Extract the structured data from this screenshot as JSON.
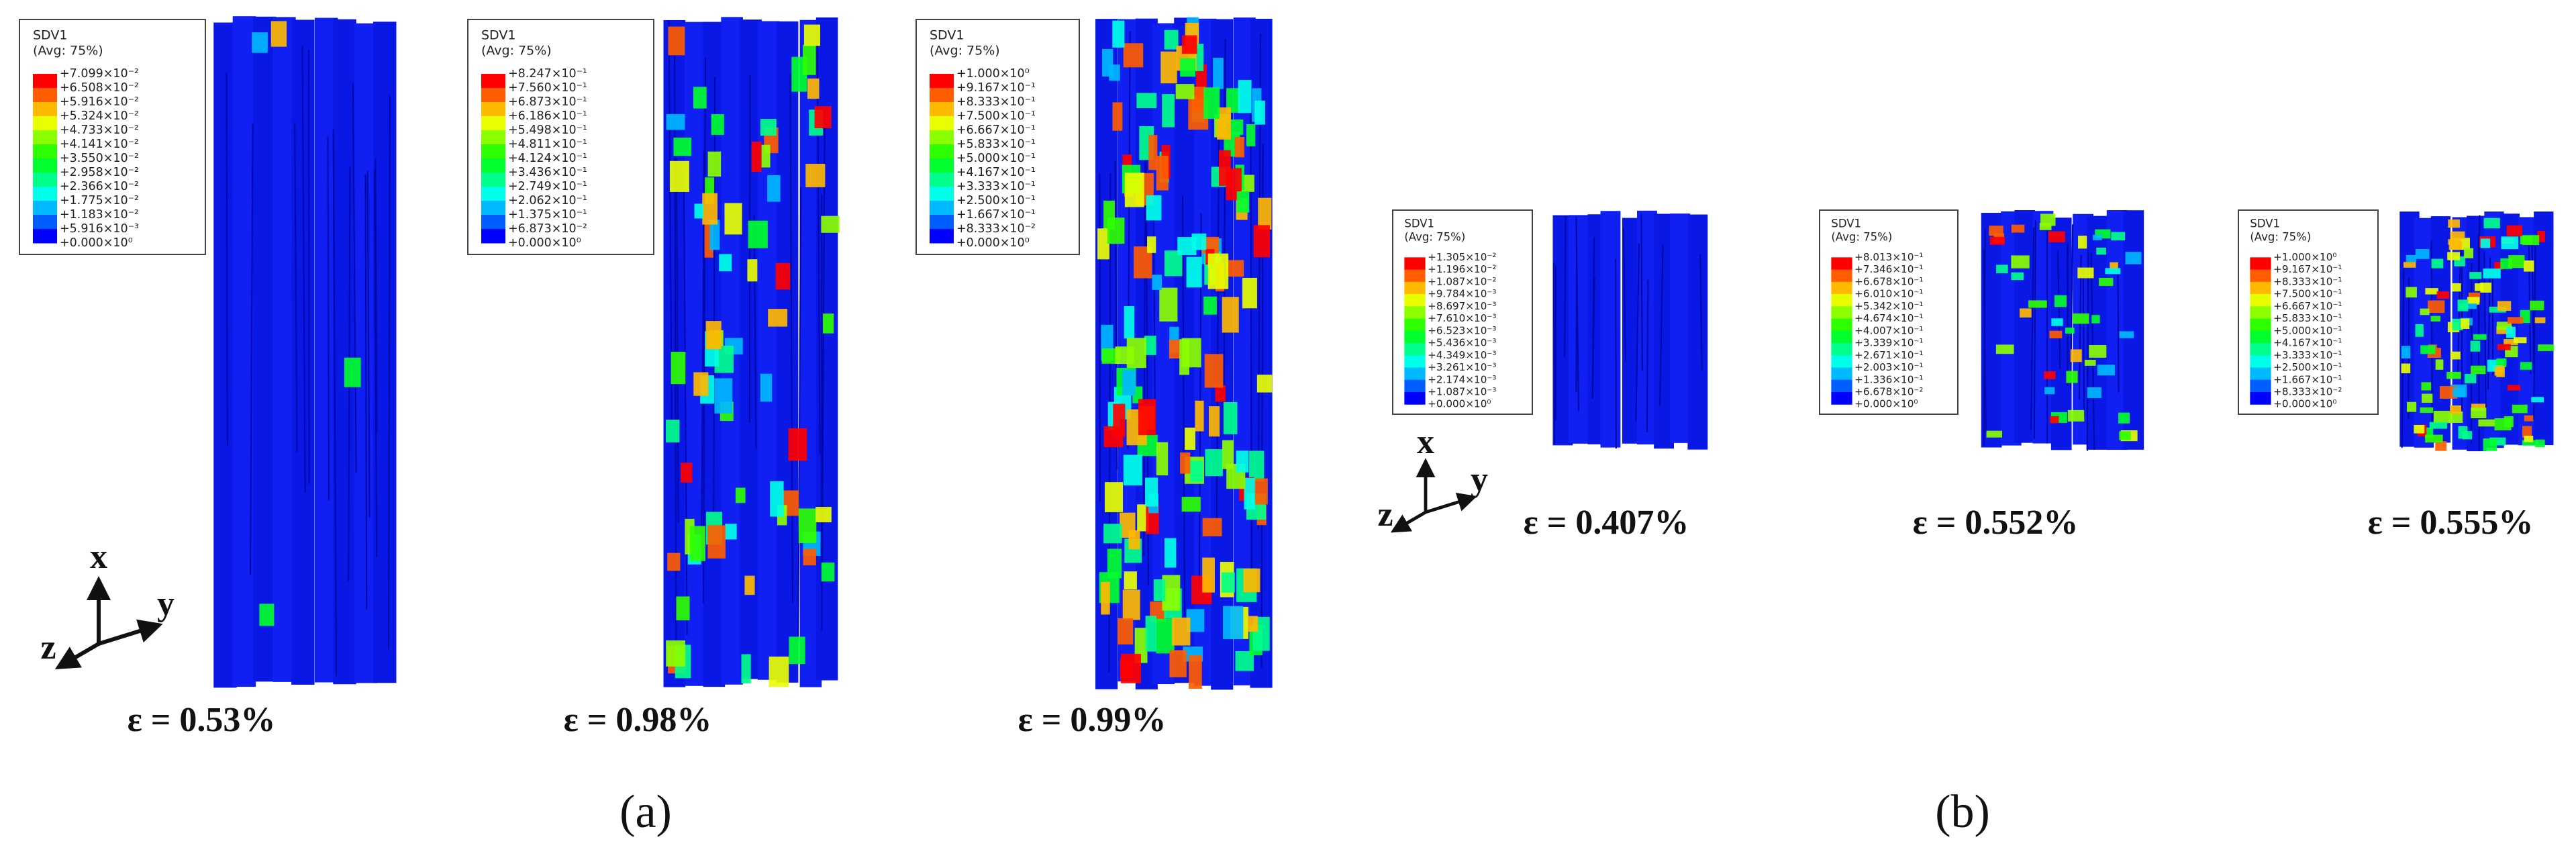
{
  "panels": [
    {
      "legend": {
        "title": "SDV1",
        "subtitle": "(Avg: 75%)",
        "labels": [
          "+7.099×10⁻²",
          "+6.508×10⁻²",
          "+5.916×10⁻²",
          "+5.324×10⁻²",
          "+4.733×10⁻²",
          "+4.141×10⁻²",
          "+3.550×10⁻²",
          "+2.958×10⁻²",
          "+2.366×10⁻²",
          "+1.775×10⁻²",
          "+1.183×10⁻²",
          "+5.916×10⁻³",
          "+0.000×10⁰"
        ]
      },
      "strain_label": "ε = 0.53%",
      "triad": {
        "x": "x",
        "y": "y",
        "z": "z"
      }
    },
    {
      "legend": {
        "title": "SDV1",
        "subtitle": "(Avg: 75%)",
        "labels": [
          "+8.247×10⁻¹",
          "+7.560×10⁻¹",
          "+6.873×10⁻¹",
          "+6.186×10⁻¹",
          "+5.498×10⁻¹",
          "+4.811×10⁻¹",
          "+4.124×10⁻¹",
          "+3.436×10⁻¹",
          "+2.749×10⁻¹",
          "+2.062×10⁻¹",
          "+1.375×10⁻¹",
          "+6.873×10⁻²",
          "+0.000×10⁰"
        ]
      },
      "strain_label": "ε = 0.98%"
    },
    {
      "legend": {
        "title": "SDV1",
        "subtitle": "(Avg: 75%)",
        "labels": [
          "+1.000×10⁰",
          "+9.167×10⁻¹",
          "+8.333×10⁻¹",
          "+7.500×10⁻¹",
          "+6.667×10⁻¹",
          "+5.833×10⁻¹",
          "+5.000×10⁻¹",
          "+4.167×10⁻¹",
          "+3.333×10⁻¹",
          "+2.500×10⁻¹",
          "+1.667×10⁻¹",
          "+8.333×10⁻²",
          "+0.000×10⁰"
        ]
      },
      "strain_label": "ε = 0.99%"
    },
    {
      "legend": {
        "title": "SDV1",
        "subtitle": "(Avg: 75%)",
        "labels": [
          "+1.305×10⁻²",
          "+1.196×10⁻²",
          "+1.087×10⁻²",
          "+9.784×10⁻³",
          "+8.697×10⁻³",
          "+7.610×10⁻³",
          "+6.523×10⁻³",
          "+5.436×10⁻³",
          "+4.349×10⁻³",
          "+3.261×10⁻³",
          "+2.174×10⁻³",
          "+1.087×10⁻³",
          "+0.000×10⁰"
        ]
      },
      "strain_label": "ε = 0.407%",
      "triad": {
        "x": "x",
        "y": "y",
        "z": "z"
      }
    },
    {
      "legend": {
        "title": "SDV1",
        "subtitle": "(Avg: 75%)",
        "labels": [
          "+8.013×10⁻¹",
          "+7.346×10⁻¹",
          "+6.678×10⁻¹",
          "+6.010×10⁻¹",
          "+5.342×10⁻¹",
          "+4.674×10⁻¹",
          "+4.007×10⁻¹",
          "+3.339×10⁻¹",
          "+2.671×10⁻¹",
          "+2.003×10⁻¹",
          "+1.336×10⁻¹",
          "+6.678×10⁻²",
          "+0.000×10⁰"
        ]
      },
      "strain_label": "ε = 0.552%"
    },
    {
      "legend": {
        "title": "SDV1",
        "subtitle": "(Avg: 75%)",
        "labels": [
          "+1.000×10⁰",
          "+9.167×10⁻¹",
          "+8.333×10⁻¹",
          "+7.500×10⁻¹",
          "+6.667×10⁻¹",
          "+5.833×10⁻¹",
          "+5.000×10⁻¹",
          "+4.167×10⁻¹",
          "+3.333×10⁻¹",
          "+2.500×10⁻¹",
          "+1.667×10⁻¹",
          "+8.333×10⁻²",
          "+0.000×10⁰"
        ]
      },
      "strain_label": "ε = 0.555%"
    }
  ],
  "captions": [
    "(a)",
    "(b)"
  ]
}
